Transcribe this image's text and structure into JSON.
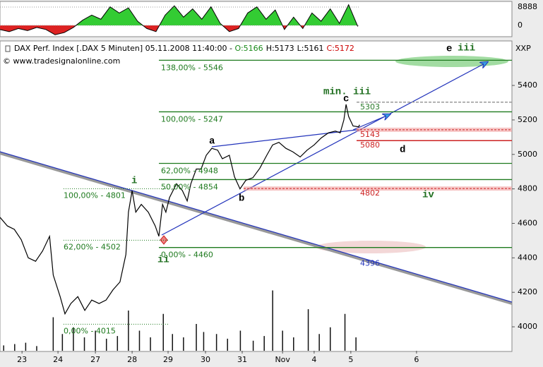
{
  "chart_data": {
    "type": "line",
    "title": "DAX Perf. Index [.DAX  5 Minuten] 05.11.2008 11:40:00 - ",
    "quote": [
      {
        "label": "O:5166",
        "color": "#1a8a1a"
      },
      {
        "label": "H:5173",
        "color": "#000000"
      },
      {
        "label": "L:5161",
        "color": "#000000"
      },
      {
        "label": "C:5172",
        "color": "#cc0000"
      }
    ],
    "source": "© www.tradesignalonline.com",
    "y_axis_label": "XXP",
    "color": "#000000",
    "x": [
      -0.6,
      -0.4,
      -0.21,
      -0.02,
      0.17,
      0.37,
      0.56,
      0.75,
      0.85,
      1.04,
      1.17,
      1.33,
      1.52,
      1.71,
      1.9,
      2.1,
      2.29,
      2.48,
      2.67,
      2.83,
      2.9,
      3.0,
      3.1,
      3.25,
      3.44,
      3.63,
      3.73,
      3.83,
      3.92,
      4.02,
      4.21,
      4.37,
      4.5,
      4.6,
      4.75,
      4.88,
      5.02,
      5.17,
      5.33,
      5.46,
      5.65,
      5.79,
      5.94,
      6.1,
      6.29,
      6.48,
      6.67,
      6.83,
      7.0,
      7.19,
      7.38,
      7.58,
      7.77,
      7.96,
      8.15,
      8.35,
      8.54,
      8.67,
      8.77,
      8.83,
      8.9,
      9.02,
      9.17,
      9.2
    ],
    "values": [
      4635,
      4585,
      4565,
      4505,
      4400,
      4380,
      4440,
      4525,
      4300,
      4175,
      4075,
      4135,
      4175,
      4095,
      4155,
      4135,
      4155,
      4215,
      4260,
      4420,
      4665,
      4790,
      4665,
      4710,
      4665,
      4585,
      4525,
      4710,
      4665,
      4750,
      4830,
      4790,
      4730,
      4830,
      4915,
      4915,
      4995,
      5035,
      5025,
      4975,
      4995,
      4870,
      4800,
      4850,
      4865,
      4920,
      4995,
      5055,
      5070,
      5035,
      5015,
      4985,
      5025,
      5055,
      5095,
      5125,
      5135,
      5125,
      5200,
      5290,
      5220,
      5165,
      5160,
      5172
    ],
    "xlim": [
      -0.6,
      13.35
    ],
    "ylim": [
      3861,
      5650
    ],
    "yticks": [
      4000,
      4200,
      4400,
      4600,
      4800,
      5000,
      5200,
      5400
    ],
    "xticks": [
      {
        "value": 0,
        "label": "23"
      },
      {
        "value": 0.98,
        "label": "24"
      },
      {
        "value": 2.0,
        "label": "27"
      },
      {
        "value": 3.0,
        "label": "28"
      },
      {
        "value": 3.98,
        "label": "29"
      },
      {
        "value": 5.0,
        "label": "30"
      },
      {
        "value": 6.0,
        "label": "31"
      },
      {
        "value": 7.1,
        "label": "Nov"
      },
      {
        "value": 7.96,
        "label": "4"
      },
      {
        "value": 8.96,
        "label": "5"
      },
      {
        "value": 10.75,
        "label": "6"
      }
    ],
    "levels": [
      {
        "value": 5546,
        "label": "138,00% - 5546"
      },
      {
        "value": 5247,
        "label": "100,00% - 5247"
      },
      {
        "value": 4948,
        "label": "62,00% - 4948"
      },
      {
        "value": 4854,
        "label": "50,00% - 4854"
      },
      {
        "value": 4460,
        "label": "0,00% - 4460"
      }
    ],
    "level_color": "#1e7a1e",
    "dotted_levels": [
      {
        "value": 4801,
        "label": "100,00% - 4801"
      },
      {
        "value": 4502,
        "label": "62,00% - 4502"
      },
      {
        "value": 4015,
        "label": "0,00% - 4015"
      }
    ],
    "price_marks": [
      {
        "value": 5303,
        "color": "#2a7a2a",
        "style": "dashed"
      },
      {
        "value": 5143,
        "color": "#cc2222",
        "style": "band"
      },
      {
        "value": 5080,
        "color": "#cc2222",
        "style": "line"
      },
      {
        "value": 4802,
        "color": "#cc2222",
        "style": "band-long"
      },
      {
        "value": 4396,
        "color": "#2233bb",
        "style": "none"
      }
    ],
    "wave_labels": [
      "i",
      "ii",
      "a",
      "b",
      "c",
      "min. iii",
      "d",
      "iv",
      "e",
      "iii"
    ],
    "volume": {
      "x": [
        -0.5,
        -0.2,
        0.1,
        0.4,
        0.85,
        1.1,
        1.4,
        1.7,
        2.0,
        2.3,
        2.6,
        2.9,
        3.2,
        3.5,
        3.85,
        4.1,
        4.4,
        4.75,
        4.95,
        5.3,
        5.6,
        5.95,
        6.3,
        6.6,
        6.83,
        7.1,
        7.4,
        7.8,
        8.1,
        8.4,
        8.8,
        9.1
      ],
      "values": [
        8,
        10,
        12,
        7,
        50,
        25,
        35,
        20,
        30,
        18,
        22,
        60,
        30,
        20,
        55,
        25,
        20,
        40,
        28,
        25,
        18,
        30,
        15,
        22,
        90,
        30,
        20,
        62,
        25,
        35,
        55,
        20
      ]
    },
    "oscillator": {
      "x": [
        -0.6,
        -0.35,
        -0.1,
        0.15,
        0.4,
        0.65,
        0.9,
        1.15,
        1.4,
        1.65,
        1.9,
        2.15,
        2.4,
        2.65,
        2.9,
        3.15,
        3.4,
        3.65,
        3.9,
        4.15,
        4.4,
        4.65,
        4.9,
        5.15,
        5.4,
        5.65,
        5.9,
        6.15,
        6.4,
        6.65,
        6.9,
        7.15,
        7.4,
        7.65,
        7.9,
        8.15,
        8.4,
        8.65,
        8.9,
        9.15
      ],
      "values": [
        -2000,
        -3000,
        -1500,
        -2500,
        -1000,
        -2000,
        -4500,
        -3500,
        -1000,
        2500,
        5000,
        3000,
        9000,
        6000,
        8500,
        2000,
        -1500,
        -3000,
        5000,
        9500,
        4000,
        8000,
        3000,
        9000,
        1000,
        -3000,
        -1500,
        6000,
        9000,
        3000,
        7500,
        -2000,
        4000,
        -1500,
        6000,
        2000,
        8000,
        1000,
        10000,
        -500
      ],
      "ylim": [
        -5470,
        11623
      ],
      "yticks": [
        0,
        8888
      ]
    }
  }
}
